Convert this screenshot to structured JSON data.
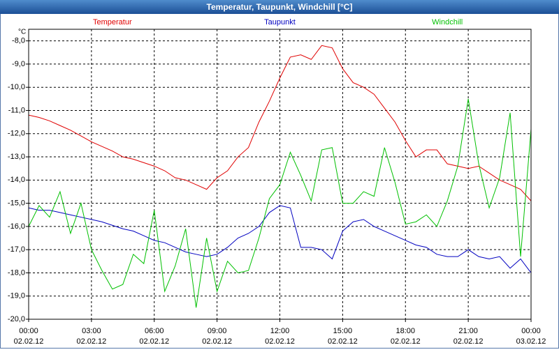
{
  "chart_data": {
    "type": "line",
    "title": "Temperatur, Taupunkt, Windchill [°C]",
    "y_label": "°C",
    "x": [
      0,
      0.5,
      1,
      1.5,
      2,
      2.5,
      3,
      3.5,
      4,
      4.5,
      5,
      5.5,
      6,
      6.5,
      7,
      7.5,
      8,
      8.5,
      9,
      9.5,
      10,
      10.5,
      11,
      11.5,
      12,
      12.5,
      13,
      13.5,
      14,
      14.5,
      15,
      15.5,
      16,
      16.5,
      17,
      17.5,
      18,
      18.5,
      19,
      19.5,
      20,
      20.5,
      21,
      21.5,
      22,
      22.5,
      23,
      23.5,
      24
    ],
    "series": [
      {
        "name": "Temperatur",
        "color": "#e00000",
        "values": [
          -11.2,
          -11.3,
          -11.45,
          -11.65,
          -11.85,
          -12.1,
          -12.35,
          -12.55,
          -12.75,
          -13.0,
          -13.1,
          -13.25,
          -13.4,
          -13.6,
          -13.9,
          -14.0,
          -14.2,
          -14.4,
          -13.9,
          -13.6,
          -13.0,
          -12.6,
          -11.5,
          -10.6,
          -9.6,
          -8.7,
          -8.6,
          -8.8,
          -8.2,
          -8.3,
          -9.2,
          -9.8,
          -10.0,
          -10.3,
          -10.9,
          -11.5,
          -12.3,
          -13.0,
          -12.7,
          -12.7,
          -13.3,
          -13.4,
          -13.5,
          -13.4,
          -13.7,
          -14.0,
          -14.2,
          -14.4,
          -14.9
        ]
      },
      {
        "name": "Taupunkt",
        "color": "#0000c0",
        "values": [
          -15.2,
          -15.3,
          -15.3,
          -15.4,
          -15.5,
          -15.6,
          -15.7,
          -15.8,
          -15.95,
          -16.1,
          -16.2,
          -16.4,
          -16.6,
          -16.7,
          -16.9,
          -17.1,
          -17.2,
          -17.3,
          -17.2,
          -16.9,
          -16.5,
          -16.3,
          -16.0,
          -15.4,
          -15.1,
          -15.2,
          -16.9,
          -16.9,
          -17.0,
          -17.4,
          -16.2,
          -15.8,
          -15.7,
          -16.0,
          -16.2,
          -16.4,
          -16.6,
          -16.8,
          -16.9,
          -17.2,
          -17.3,
          -17.3,
          -17.0,
          -17.3,
          -17.4,
          -17.3,
          -17.8,
          -17.4,
          -18.0
        ]
      },
      {
        "name": "Windchill",
        "color": "#00c000",
        "values": [
          -16.0,
          -15.1,
          -15.6,
          -14.5,
          -16.3,
          -15.0,
          -17.0,
          -17.9,
          -18.7,
          -18.5,
          -17.2,
          -17.6,
          -15.3,
          -18.8,
          -17.7,
          -16.1,
          -19.5,
          -16.5,
          -18.8,
          -17.5,
          -18.0,
          -17.9,
          -16.5,
          -14.8,
          -14.2,
          -12.8,
          -13.8,
          -14.9,
          -12.7,
          -12.6,
          -15.0,
          -15.0,
          -14.5,
          -14.7,
          -12.6,
          -14.1,
          -15.9,
          -15.8,
          -15.5,
          -16.0,
          -14.9,
          -13.4,
          -10.5,
          -13.3,
          -15.2,
          -13.9,
          -11.1,
          -17.3,
          -11.8
        ]
      }
    ],
    "xlim": [
      0,
      24
    ],
    "ylim": [
      -20,
      -7.5
    ],
    "xticks": [
      {
        "value": 0,
        "label": "00:00"
      },
      {
        "value": 3,
        "label": "03:00"
      },
      {
        "value": 6,
        "label": "06:00"
      },
      {
        "value": 9,
        "label": "09:00"
      },
      {
        "value": 12,
        "label": "12:00"
      },
      {
        "value": 15,
        "label": "15:00"
      },
      {
        "value": 18,
        "label": "18:00"
      },
      {
        "value": 21,
        "label": "21:00"
      },
      {
        "value": 24,
        "label": "00:00"
      }
    ],
    "xtick_dates": [
      "02.02.12",
      "02.02.12",
      "02.02.12",
      "02.02.12",
      "02.02.12",
      "02.02.12",
      "02.02.12",
      "02.02.12",
      "03.02.12"
    ],
    "yticks": [
      {
        "value": -8,
        "label": "-8,0"
      },
      {
        "value": -9,
        "label": "-9,0"
      },
      {
        "value": -10,
        "label": "-10,0"
      },
      {
        "value": -11,
        "label": "-11,0"
      },
      {
        "value": -12,
        "label": "-12,0"
      },
      {
        "value": -13,
        "label": "-13,0"
      },
      {
        "value": -14,
        "label": "-14,0"
      },
      {
        "value": -15,
        "label": "-15,0"
      },
      {
        "value": -16,
        "label": "-16,0"
      },
      {
        "value": -17,
        "label": "-17,0"
      },
      {
        "value": -18,
        "label": "-18,0"
      },
      {
        "value": -19,
        "label": "-19,0"
      },
      {
        "value": -20,
        "label": "-20,0"
      }
    ],
    "grid": true
  }
}
